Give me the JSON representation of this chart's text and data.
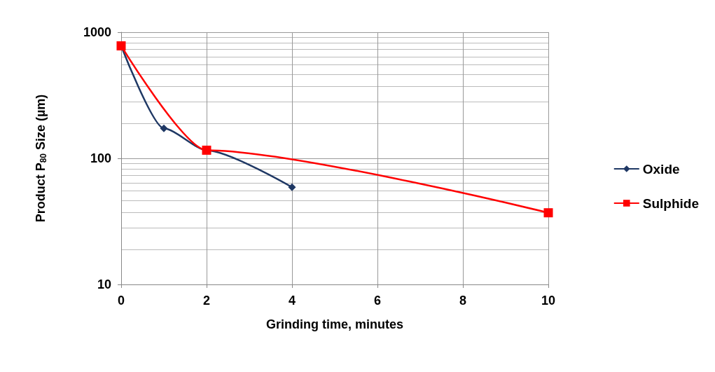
{
  "chart_data": {
    "type": "line",
    "xlabel": "Grinding time, minutes",
    "ylabel": "Product P$_{80}$ Size (µm)",
    "log": "y",
    "grid": true,
    "legend": "right",
    "xlim": [
      0,
      10
    ],
    "xticks": [
      0,
      2,
      4,
      6,
      8,
      10
    ],
    "ylim": [
      10,
      1000
    ],
    "yticks": [
      10,
      100,
      1000
    ],
    "series": [
      {
        "name": "Oxide",
        "color": "#1f3864",
        "marker": "diamond",
        "x": [
          0,
          1,
          2,
          4
        ],
        "values": [
          780,
          173,
          116,
          59
        ]
      },
      {
        "name": "Sulphide",
        "color": "#ff0000",
        "marker": "square",
        "x": [
          0,
          2,
          10
        ],
        "values": [
          780,
          116,
          37
        ]
      }
    ]
  }
}
